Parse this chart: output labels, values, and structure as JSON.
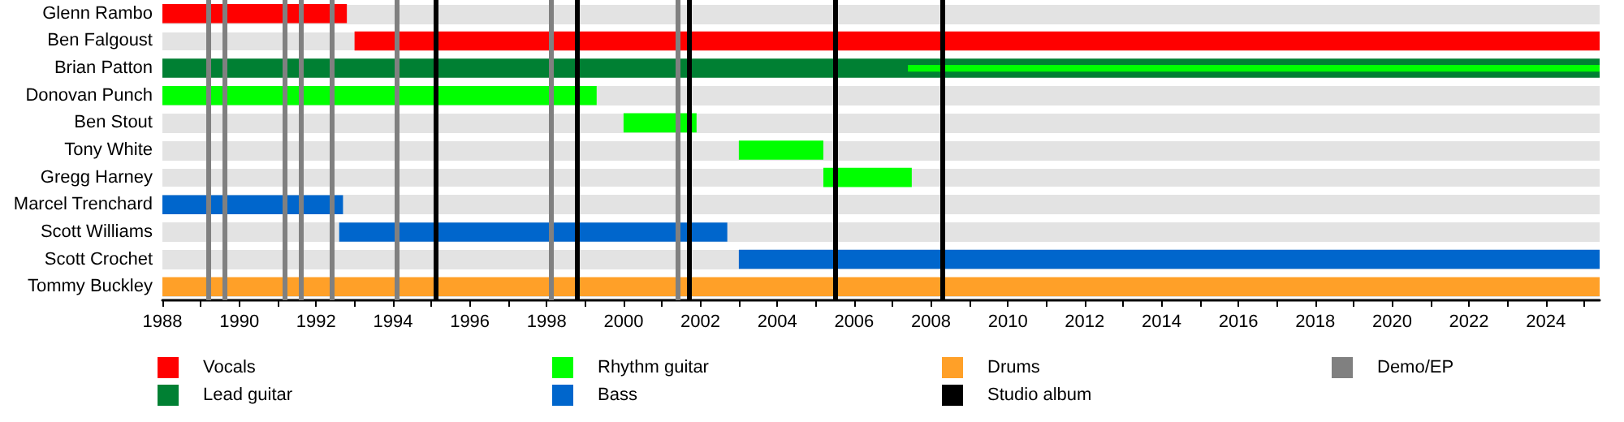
{
  "chart_data": {
    "type": "bar",
    "orientation": "horizontal",
    "legend": "bottom",
    "categories": [
      "Glenn Rambo",
      "Ben Falgoust",
      "Brian Patton",
      "Donovan Punch",
      "Ben Stout",
      "Tony White",
      "Gregg Harney",
      "Marcel Trenchard",
      "Scott Williams",
      "Scott Crochet",
      "Tommy Buckley"
    ],
    "series": [
      {
        "name": "Vocals",
        "color": "#ff0000",
        "base": [
          1988,
          1993.0,
          null,
          null,
          null,
          null,
          null,
          null,
          null,
          null,
          null
        ],
        "values": [
          4.8,
          32.4,
          null,
          null,
          null,
          null,
          null,
          null,
          null,
          null,
          null
        ]
      },
      {
        "name": "Lead guitar",
        "color": "#008033",
        "base": [
          null,
          null,
          1988,
          null,
          null,
          null,
          null,
          null,
          null,
          null,
          null
        ],
        "values": [
          null,
          null,
          37.4,
          null,
          null,
          null,
          null,
          null,
          null,
          null,
          null
        ]
      },
      {
        "name": "Rhythm guitar",
        "color": "#00ff00",
        "base": [
          null,
          null,
          2007.4,
          1988,
          2000.0,
          2003.0,
          2005.2,
          null,
          null,
          null,
          null
        ],
        "values": [
          null,
          null,
          18.0,
          11.3,
          1.9,
          2.2,
          2.3,
          null,
          null,
          null,
          null
        ]
      },
      {
        "name": "Bass",
        "color": "#0066cc",
        "base": [
          null,
          null,
          null,
          null,
          null,
          null,
          null,
          1988,
          1992.6,
          2003.0,
          null
        ],
        "values": [
          null,
          null,
          null,
          null,
          null,
          null,
          null,
          4.7,
          10.1,
          22.4,
          null
        ]
      },
      {
        "name": "Drums",
        "color": "#ffa028",
        "base": [
          null,
          null,
          null,
          null,
          null,
          null,
          null,
          null,
          null,
          null,
          1988
        ],
        "values": [
          null,
          null,
          null,
          null,
          null,
          null,
          null,
          null,
          null,
          null,
          37.4
        ]
      }
    ],
    "xlim": [
      1988,
      2025.4
    ],
    "xticks": [
      1988,
      {
        "value": 1989,
        "label": null
      },
      1990,
      {
        "value": 1991,
        "label": null
      },
      1992,
      {
        "value": 1993,
        "label": null
      },
      1994,
      {
        "value": 1995,
        "label": null
      },
      1996,
      {
        "value": 1997,
        "label": null
      },
      1998,
      {
        "value": 1999,
        "label": null
      },
      2000,
      {
        "value": 2001,
        "label": null
      },
      2002,
      {
        "value": 2003,
        "label": null
      },
      2004,
      {
        "value": 2005,
        "label": null
      },
      2006,
      {
        "value": 2007,
        "label": null
      },
      2008,
      {
        "value": 2009,
        "label": null
      },
      2010,
      {
        "value": 2011,
        "label": null
      },
      2012,
      {
        "value": 2013,
        "label": null
      },
      2014,
      {
        "value": 2015,
        "label": null
      },
      2016,
      {
        "value": 2017,
        "label": null
      },
      2018,
      {
        "value": 2019,
        "label": null
      },
      2020,
      {
        "value": 2021,
        "label": null
      },
      2022,
      {
        "value": 2023,
        "label": null
      },
      2024,
      {
        "value": 2025,
        "label": null
      }
    ],
    "ref_lines": [
      {
        "axis": "x",
        "value": 1995.1,
        "label": "Studio album",
        "color": "#000000"
      },
      {
        "axis": "x",
        "value": 1998.8,
        "color": "#000000"
      },
      {
        "axis": "x",
        "value": 2001.7,
        "color": "#000000"
      },
      {
        "axis": "x",
        "value": 2005.5,
        "color": "#000000"
      },
      {
        "axis": "x",
        "value": 2008.3,
        "color": "#000000"
      },
      {
        "axis": "x",
        "value": 1989.2,
        "label": "Demo/EP",
        "color": "#808080"
      },
      {
        "axis": "x",
        "value": 1989.6,
        "color": "#808080"
      },
      {
        "axis": "x",
        "value": 1991.2,
        "color": "#808080"
      },
      {
        "axis": "x",
        "value": 1991.6,
        "color": "#808080"
      },
      {
        "axis": "x",
        "value": 1992.4,
        "color": "#808080"
      },
      {
        "axis": "x",
        "value": 1994.1,
        "color": "#808080"
      },
      {
        "axis": "x",
        "value": 1998.1,
        "color": "#808080"
      },
      {
        "axis": "x",
        "value": 2001.4,
        "color": "#808080"
      }
    ]
  }
}
